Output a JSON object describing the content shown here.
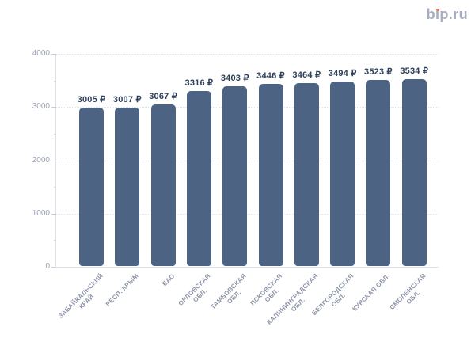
{
  "logo": {
    "text": "bip.ru",
    "part1": "b",
    "part2": "ıp.ru",
    "text_color": "#a8aec1",
    "dot_color": "#ee7254"
  },
  "chart_data": {
    "type": "bar",
    "title": "",
    "categories": [
      "Забайкальский край",
      "Респ. Крым",
      "ЕАО",
      "Орловская обл.",
      "Тамбовская обл.",
      "Псковская обл.",
      "Калининградская обл.",
      "Белгородская обл.",
      "Курская обл.",
      "Смоленская обл."
    ],
    "category_label_lines": [
      [
        "ЗАБАЙКАЛЬСКИЙ",
        "КРАЙ"
      ],
      [
        "РЕСП. КРЫМ"
      ],
      [
        "ЕАО"
      ],
      [
        "ОРЛОВСКАЯ",
        "ОБЛ."
      ],
      [
        "ТАМБОВСКАЯ",
        "ОБЛ."
      ],
      [
        "ПСКОВСКАЯ",
        "ОБЛ."
      ],
      [
        "КАЛИНИНГРАДСКАЯ",
        "ОБЛ."
      ],
      [
        "БЕЛГОРОДСКАЯ",
        "ОБЛ."
      ],
      [
        "КУРСКАЯ ОБЛ."
      ],
      [
        "СМОЛЕНСКАЯ",
        "ОБЛ."
      ]
    ],
    "values": [
      3005,
      3007,
      3067,
      3316,
      3403,
      3446,
      3464,
      3494,
      3523,
      3534
    ],
    "value_labels": [
      "3005 ₽",
      "3007 ₽",
      "3067 ₽",
      "3316 ₽",
      "3403 ₽",
      "3446 ₽",
      "3464 ₽",
      "3494 ₽",
      "3523 ₽",
      "3534 ₽"
    ],
    "currency": "₽",
    "xlabel": "",
    "ylabel": "",
    "ylim": [
      0,
      4000
    ],
    "yticks": [
      0,
      1000,
      2000,
      3000,
      4000
    ],
    "minor_ytick_step": 500,
    "grid": "dotted-horizontal-major",
    "legend": "none",
    "bar_color": "#4d6383",
    "value_label_color": "#2e3f59",
    "axis_label_color": "#9aa1b1",
    "category_label_color": "#8b93a6",
    "axis_line_color": "#dfe2ea"
  }
}
